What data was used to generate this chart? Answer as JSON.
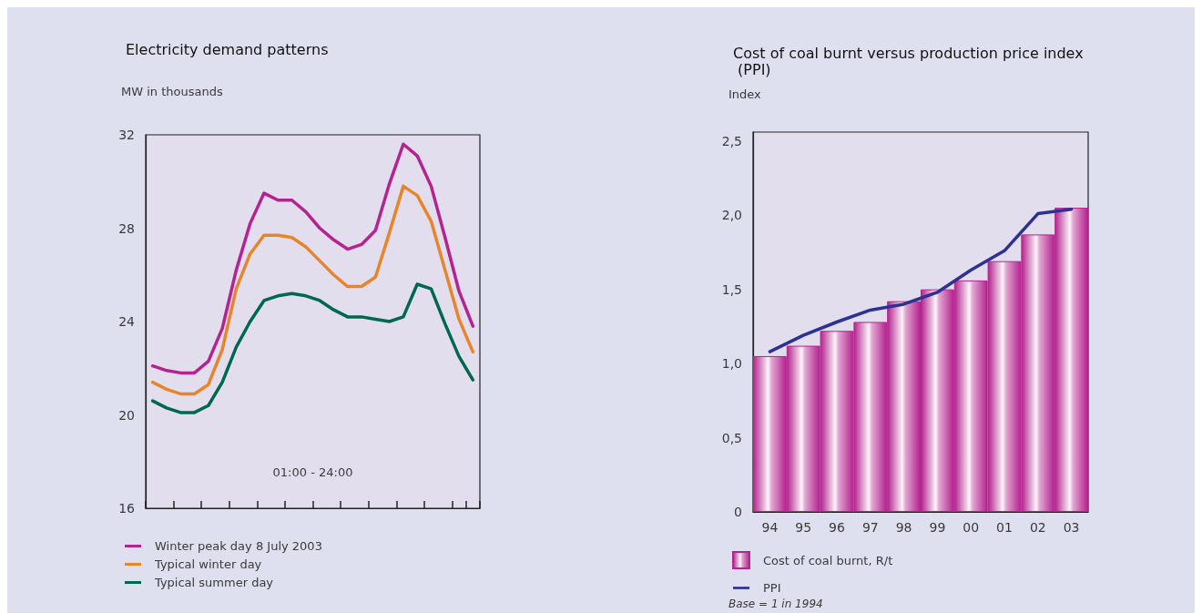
{
  "chart_data": [
    {
      "type": "line",
      "title": "Electricity demand patterns",
      "ylabel": "MW in thousands",
      "categories": [
        null,
        null,
        null,
        null,
        null,
        null,
        null,
        null,
        null,
        null,
        null,
        null,
        null,
        null,
        null,
        null,
        null,
        null,
        null,
        null,
        null,
        null,
        null,
        null
      ],
      "series": [
        {
          "name": "Winter peak day 8 July 2003",
          "color": "#b5238f",
          "values": [
            22.1,
            21.9,
            21.8,
            21.8,
            22.3,
            23.7,
            26.2,
            28.2,
            29.5,
            29.2,
            29.2,
            28.7,
            28.0,
            27.5,
            27.1,
            27.3,
            27.9,
            29.9,
            31.6,
            31.1,
            29.8,
            27.6,
            25.3,
            23.8
          ]
        },
        {
          "name": "Typical winter day",
          "color": "#e8852a",
          "values": [
            21.4,
            21.1,
            20.9,
            20.9,
            21.3,
            22.8,
            25.4,
            26.9,
            27.7,
            27.7,
            27.6,
            27.2,
            26.6,
            26.0,
            25.5,
            25.5,
            25.9,
            27.8,
            29.8,
            29.4,
            28.3,
            26.2,
            24.1,
            22.7
          ]
        },
        {
          "name": "Typical summer day",
          "color": "#00684f",
          "values": [
            20.6,
            20.3,
            20.1,
            20.1,
            20.4,
            21.4,
            22.9,
            24.0,
            24.9,
            25.1,
            25.2,
            25.1,
            24.9,
            24.5,
            24.2,
            24.2,
            24.1,
            24.0,
            24.2,
            25.6,
            25.4,
            23.9,
            22.5,
            21.5
          ]
        }
      ],
      "ylim": [
        16,
        32
      ],
      "yticks": [
        16,
        20,
        24,
        28,
        32
      ],
      "grid": false,
      "legend": "bottom left",
      "marker": "none",
      "tick_labels": "y",
      "annotations": [
        "01:00 - 24:00"
      ]
    },
    {
      "type": "bar",
      "title": "Cost of coal burnt versus production price index (PPI)",
      "ylabel": "Index",
      "categories": [
        "94",
        "95",
        "96",
        "97",
        "98",
        "99",
        "00",
        "01",
        "02",
        "03"
      ],
      "series": [
        {
          "name": "Cost of coal burnt, R/t",
          "color": "#b5238f",
          "values": [
            1.05,
            1.12,
            1.22,
            1.28,
            1.42,
            1.5,
            1.56,
            1.69,
            1.87,
            2.05
          ]
        },
        {
          "name": "PPI",
          "type": "line",
          "color": "#2e3192",
          "values": [
            1.08,
            1.19,
            1.28,
            1.36,
            1.4,
            1.48,
            1.63,
            1.76,
            2.01,
            2.04
          ]
        }
      ],
      "ylim": [
        0,
        2.56
      ],
      "yticks": [
        0,
        {
          "value": 0.5,
          "label": "0,5"
        },
        {
          "value": 1,
          "label": "1,0"
        },
        {
          "value": 1.5,
          "label": "1,5"
        },
        {
          "value": 2,
          "label": "2,0"
        },
        {
          "value": 2.5,
          "label": "2,5"
        }
      ],
      "grid": false,
      "legend": "bottom left",
      "marker": "none",
      "annotations": [
        "Base = 1 in 1994"
      ]
    }
  ]
}
